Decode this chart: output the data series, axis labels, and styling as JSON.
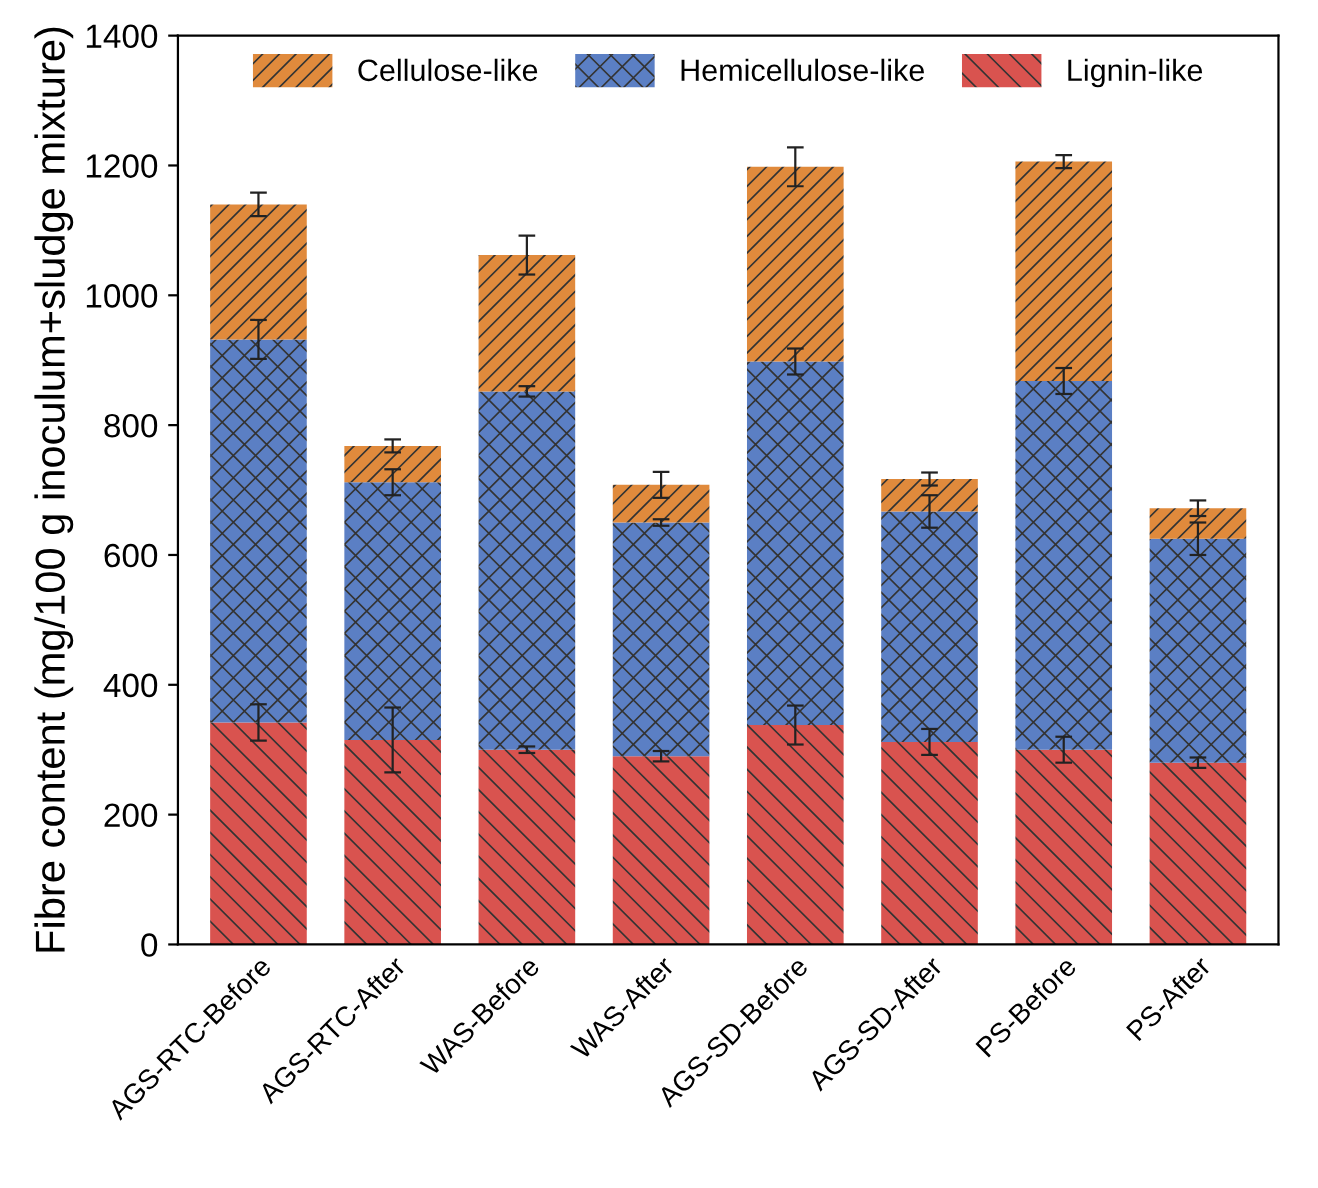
{
  "chart_data": {
    "type": "bar",
    "stacked": true,
    "ylabel": "Fibre content (mg/100 g inoculum+sludge mixture)",
    "categories": [
      "AGS-RTC-Before",
      "AGS-RTC-After",
      "WAS-Before",
      "WAS-After",
      "AGS-SD-Before",
      "AGS-SD-After",
      "PS-Before",
      "PS-After"
    ],
    "series": [
      {
        "name": "Lignin-like",
        "color": "#d9534f",
        "values": [
          342,
          315,
          300,
          290,
          338,
          312,
          300,
          280
        ],
        "errors": [
          28,
          50,
          5,
          8,
          30,
          20,
          20,
          8
        ]
      },
      {
        "name": "Hemicellulose-like",
        "color": "#5b7fc4",
        "values": [
          590,
          397,
          552,
          360,
          560,
          355,
          568,
          345
        ],
        "errors": [
          30,
          20,
          8,
          5,
          20,
          25,
          20,
          25
        ]
      },
      {
        "name": "Cellulose-like",
        "color": "#e08a3c",
        "values": [
          208,
          56,
          210,
          58,
          300,
          50,
          338,
          47
        ],
        "errors": [
          18,
          10,
          30,
          20,
          30,
          10,
          10,
          12
        ]
      }
    ],
    "ylim": [
      0,
      1400
    ],
    "yticks": [
      0,
      200,
      400,
      600,
      800,
      1000,
      1200,
      1400
    ],
    "grid": false,
    "legend": "top"
  }
}
